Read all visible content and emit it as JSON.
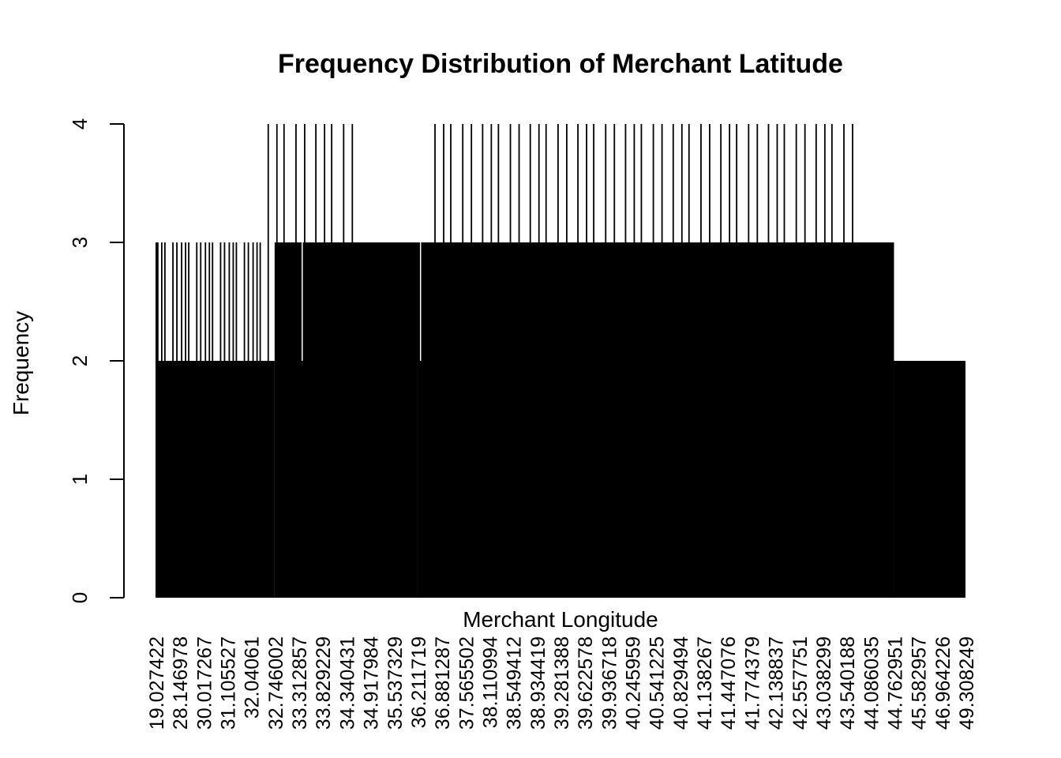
{
  "chart_data": {
    "type": "bar",
    "title": "Frequency Distribution of Merchant Latitude",
    "xlabel": "Merchant Longitude",
    "ylabel": "Frequency",
    "ylim": [
      0,
      4
    ],
    "yticks": [
      0,
      1,
      2,
      3,
      4
    ],
    "grid": false,
    "legend": "none",
    "bar_color": "#000000",
    "x_tick_labels": [
      "19.027422",
      "28.146978",
      "30.017267",
      "31.105527",
      "32.04061",
      "32.746002",
      "33.312857",
      "33.829229",
      "34.340431",
      "34.917984",
      "35.537329",
      "36.211719",
      "36.881287",
      "37.565502",
      "38.110994",
      "38.549412",
      "38.934419",
      "39.281388",
      "39.622578",
      "39.936718",
      "40.245959",
      "40.541225",
      "40.829494",
      "41.138267",
      "41.447076",
      "41.774379",
      "42.138837",
      "42.557751",
      "43.038299",
      "43.540188",
      "44.086035",
      "44.762951",
      "45.582957",
      "46.964226",
      "49.308249"
    ],
    "frequency_segments": [
      {
        "range": [
          "19.027422",
          "19.027422"
        ],
        "frequency": 1
      },
      {
        "range": [
          "19.027422",
          "32.746002"
        ],
        "frequency": 2
      },
      {
        "range": [
          "32.746002",
          "36.211719"
        ],
        "frequency": 3
      },
      {
        "range": [
          "36.211719",
          "44.762951"
        ],
        "frequency": 3
      },
      {
        "range": [
          "44.762951",
          "49.308249"
        ],
        "frequency": 2
      }
    ],
    "frequency_3_spikes": [
      "19.027422",
      "28.146978",
      "30.017267",
      "31.105527",
      "32.04061"
    ],
    "frequency_4_spikes": [
      "32.746002",
      "33.312857",
      "33.829229",
      "34.340431",
      "36.881287",
      "37.565502",
      "38.110994",
      "38.549412",
      "38.934419",
      "39.281388",
      "39.622578",
      "39.936718",
      "40.245959",
      "40.541225",
      "40.829494",
      "41.138267",
      "41.447076",
      "41.774379",
      "42.138837",
      "42.557751",
      "43.038299",
      "43.540188"
    ]
  }
}
